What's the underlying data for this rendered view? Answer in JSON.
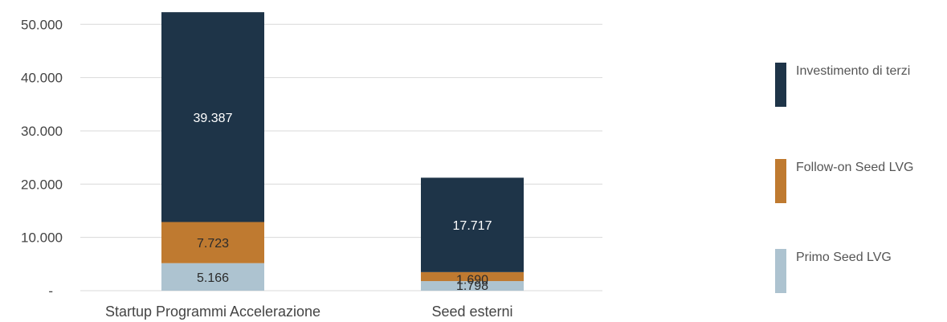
{
  "chart_data": {
    "type": "bar",
    "stacked": true,
    "categories": [
      "Startup Programmi Accelerazione",
      "Seed esterni"
    ],
    "series": [
      {
        "name": "Primo Seed LVG",
        "values": [
          5166,
          1798
        ],
        "labels": [
          "5.166",
          "1.798"
        ],
        "color": "#adc3d0",
        "label_color": "#2b2b2b"
      },
      {
        "name": "Follow-on Seed LVG",
        "values": [
          7723,
          1690
        ],
        "labels": [
          "7.723",
          "1.690"
        ],
        "color": "#bf7a30",
        "label_color": "#2b2b2b"
      },
      {
        "name": "Investimento di terzi",
        "values": [
          39387,
          17717
        ],
        "labels": [
          "39.387",
          "17.717"
        ],
        "color": "#1e3448",
        "label_color": "#ffffff"
      }
    ],
    "y_ticks": [
      {
        "value": 0,
        "label": "-"
      },
      {
        "value": 10000,
        "label": "10.000"
      },
      {
        "value": 20000,
        "label": "20.000"
      },
      {
        "value": 30000,
        "label": "30.000"
      },
      {
        "value": 40000,
        "label": "40.000"
      },
      {
        "value": 50000,
        "label": "50.000"
      }
    ],
    "ylim": [
      0,
      52000
    ],
    "grid": true,
    "legend_position": "right",
    "legend_order": [
      "Investimento di terzi",
      "Follow-on Seed LVG",
      "Primo Seed LVG"
    ]
  }
}
